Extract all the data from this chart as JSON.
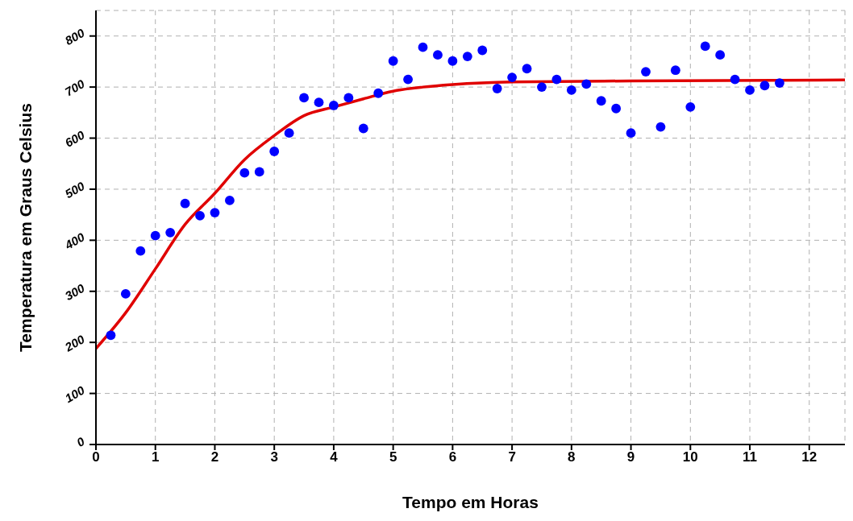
{
  "chart_data": {
    "type": "scatter",
    "xlabel": "Tempo em Horas",
    "ylabel": "Temperatura em Graus Celsius",
    "xlim": [
      0,
      12.6
    ],
    "xticks": [
      0,
      1,
      2,
      3,
      4,
      5,
      6,
      7,
      8,
      9,
      10,
      11,
      12
    ],
    "ylim": [
      0,
      850
    ],
    "yticks": [
      0,
      100,
      200,
      300,
      400,
      500,
      600,
      700,
      800
    ],
    "grid": true,
    "legend": false,
    "marker": "circle",
    "series": [
      {
        "color": "#0000ff",
        "x": [
          0.25,
          0.5,
          0.75,
          1,
          1.25,
          1.5,
          1.75,
          2,
          2.25,
          2.5,
          2.75,
          3,
          3.25,
          3.5,
          3.75,
          4,
          4.25,
          4.5,
          4.75,
          5,
          5.25,
          5.5,
          5.75,
          6,
          6.25,
          6.5,
          6.75,
          7,
          7.25,
          7.5,
          7.75,
          8,
          8.25,
          8.5,
          8.75,
          9,
          9.25,
          9.5,
          9.75,
          10,
          10.25,
          10.5,
          10.75,
          11,
          11.25,
          11.5
        ],
        "values": [
          214,
          295,
          379,
          409,
          415,
          472,
          448,
          454,
          478,
          532,
          534,
          574,
          610,
          679,
          670,
          664,
          679,
          619,
          688,
          751,
          715,
          778,
          763,
          751,
          760,
          772,
          697,
          719,
          736,
          700,
          715,
          694,
          706,
          673,
          658,
          610,
          730,
          622,
          733,
          661,
          780,
          763,
          715,
          694,
          703,
          708
        ]
      },
      {
        "type": "line",
        "color": "#e00000",
        "line_style": "solid",
        "marker": "none",
        "x": [
          0,
          0.5,
          1,
          1.5,
          2,
          2.5,
          3,
          3.5,
          4,
          4.5,
          5,
          5.5,
          6,
          7,
          9,
          12.6
        ],
        "values": [
          188,
          258,
          344,
          431,
          492,
          558,
          605,
          644,
          661,
          677,
          692,
          700,
          705,
          710,
          712,
          714
        ]
      }
    ]
  }
}
